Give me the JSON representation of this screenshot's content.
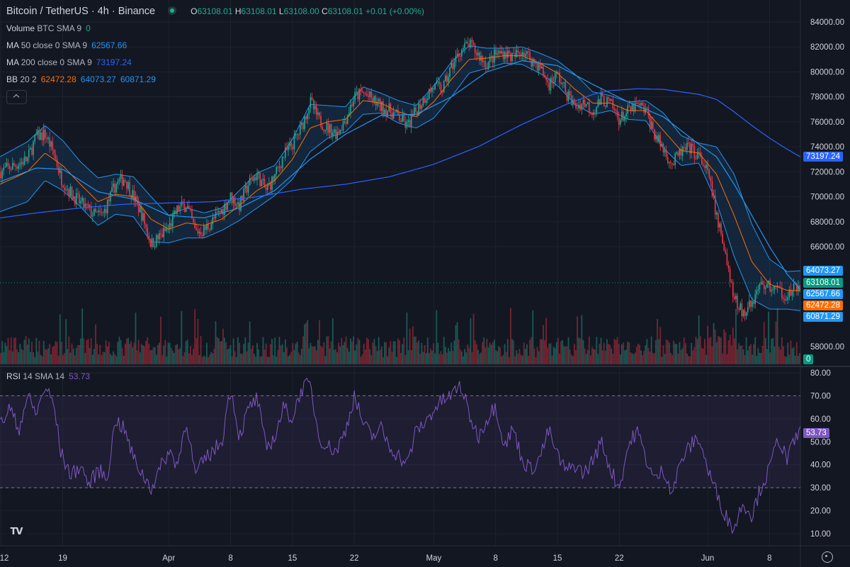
{
  "header": {
    "symbol": "Bitcoin / TetherUS · 4h · Binance",
    "open_k": "O",
    "open_v": "63108.01",
    "high_k": "H",
    "high_v": "63108.01",
    "low_k": "L",
    "low_v": "63108.00",
    "close_k": "C",
    "close_v": "63108.01",
    "change": "+0.01 (+0.00%)"
  },
  "legends": {
    "volume": {
      "name": "Volume",
      "params": "BTC SMA 9",
      "value": "0"
    },
    "ma50": {
      "name": "MA",
      "params": "50 close 0 SMA 9",
      "value": "62567.66"
    },
    "ma200": {
      "name": "MA",
      "params": "200 close 0 SMA 9",
      "value": "73197.24"
    },
    "bb": {
      "name": "BB",
      "params": "20 2",
      "basis": "62472.28",
      "upper": "64073.27",
      "lower": "60871.29"
    },
    "rsi": {
      "name": "RSI",
      "params": "14 SMA 14",
      "value": "53.73"
    }
  },
  "colors": {
    "background": "#131722",
    "up": "#22ab94",
    "down": "#f23645",
    "bb_band": "#2962ff",
    "bb_basis": "#ff6d00",
    "ma50": "#2196f3",
    "ma200": "#2962ff",
    "rsi": "#7e57c2"
  },
  "price_tags": [
    {
      "label": "73197.24",
      "value": 73197.24,
      "color": "#2962ff"
    },
    {
      "label": "64073.27",
      "value": 64073.27,
      "color": "#2196f3"
    },
    {
      "label": "63108.01",
      "value": 63108.01,
      "color": "#089981"
    },
    {
      "label": "62567.66",
      "value": 62567.66,
      "color": "#2196f3"
    },
    {
      "label": "62472.28",
      "value": 62472.28,
      "color": "#ff6d00"
    },
    {
      "label": "60871.29",
      "value": 60871.29,
      "color": "#2196f3"
    }
  ],
  "volume_tag": {
    "label": "0",
    "color": "#089981"
  },
  "rsi_tag": {
    "label": "53.73",
    "color": "#7e57c2"
  },
  "chart_data": {
    "type": "line",
    "title": "Bitcoin / TetherUS · 4h · Binance",
    "x_ticks": [
      "12",
      "19",
      "Apr",
      "8",
      "15",
      "22",
      "May",
      "8",
      "15",
      "22",
      "Jun",
      "8"
    ],
    "x_tick_days": [
      -19,
      -12,
      0,
      7,
      14,
      21,
      30,
      37,
      44,
      51,
      61,
      68
    ],
    "x_range_days": [
      -19.1,
      71.5
    ],
    "price_ticks": [
      "84000.00",
      "82000.00",
      "80000.00",
      "78000.00",
      "76000.00",
      "74000.00",
      "72000.00",
      "70000.00",
      "68000.00",
      "66000.00",
      "58000.00"
    ],
    "price_ylim": [
      58000,
      84000
    ],
    "rsi_ticks": [
      "80.00",
      "70.00",
      "60.00",
      "50.00",
      "40.00",
      "30.00",
      "20.00",
      "10.00"
    ],
    "rsi_ylim": [
      10,
      80
    ],
    "rsi_bands": [
      30,
      70
    ],
    "price_key": [
      [
        -19.1,
        72000
      ],
      [
        -17.5,
        72500
      ],
      [
        -16,
        73000
      ],
      [
        -15,
        74800
      ],
      [
        -14,
        75000
      ],
      [
        -13,
        73500
      ],
      [
        -12.2,
        71500
      ],
      [
        -11,
        70200
      ],
      [
        -10,
        69500
      ],
      [
        -8.5,
        68600
      ],
      [
        -7.5,
        68500
      ],
      [
        -6,
        71000
      ],
      [
        -5,
        71500
      ],
      [
        -4,
        70000
      ],
      [
        -3,
        68500
      ],
      [
        -2,
        66200
      ],
      [
        -1,
        66800
      ],
      [
        0,
        67500
      ],
      [
        1,
        69000
      ],
      [
        2,
        69400
      ],
      [
        3,
        67200
      ],
      [
        4,
        67300
      ],
      [
        5,
        68100
      ],
      [
        6,
        68900
      ],
      [
        7,
        70000
      ],
      [
        8,
        69300
      ],
      [
        9,
        71000
      ],
      [
        10,
        71800
      ],
      [
        11,
        70500
      ],
      [
        12,
        71600
      ],
      [
        13,
        73300
      ],
      [
        14,
        74200
      ],
      [
        15,
        75500
      ],
      [
        16,
        77600
      ],
      [
        17,
        76100
      ],
      [
        18,
        75500
      ],
      [
        19,
        75100
      ],
      [
        20,
        76200
      ],
      [
        21,
        78000
      ],
      [
        22,
        78300
      ],
      [
        23,
        77800
      ],
      [
        24,
        77200
      ],
      [
        25,
        76900
      ],
      [
        26,
        76400
      ],
      [
        27,
        75600
      ],
      [
        28,
        76900
      ],
      [
        29,
        78000
      ],
      [
        30,
        78800
      ],
      [
        31,
        78600
      ],
      [
        32,
        80400
      ],
      [
        33,
        81700
      ],
      [
        34,
        82200
      ],
      [
        35,
        81400
      ],
      [
        36,
        80600
      ],
      [
        37,
        81400
      ],
      [
        38,
        81600
      ],
      [
        39,
        81100
      ],
      [
        40,
        81800
      ],
      [
        41,
        81000
      ],
      [
        42,
        80400
      ],
      [
        43,
        79000
      ],
      [
        44,
        79800
      ],
      [
        45,
        78300
      ],
      [
        46,
        77200
      ],
      [
        47,
        77600
      ],
      [
        48,
        76900
      ],
      [
        49,
        77800
      ],
      [
        50,
        77400
      ],
      [
        51,
        76200
      ],
      [
        52,
        76800
      ],
      [
        53,
        77300
      ],
      [
        54,
        76900
      ],
      [
        55,
        75000
      ],
      [
        56,
        73800
      ],
      [
        57,
        72600
      ],
      [
        58,
        73600
      ],
      [
        59,
        73900
      ],
      [
        60,
        73200
      ],
      [
        61,
        72000
      ],
      [
        62,
        68500
      ],
      [
        63,
        65500
      ],
      [
        64,
        62000
      ],
      [
        65,
        60500
      ],
      [
        66,
        61500
      ],
      [
        67,
        63000
      ],
      [
        68,
        62800
      ],
      [
        69,
        62500
      ],
      [
        70,
        62100
      ],
      [
        71,
        62600
      ],
      [
        71.5,
        63108
      ]
    ],
    "ma200_key": [
      [
        -19.1,
        68300
      ],
      [
        -15,
        68700
      ],
      [
        -10,
        69100
      ],
      [
        -5,
        69400
      ],
      [
        0,
        69500
      ],
      [
        5,
        69600
      ],
      [
        10,
        70000
      ],
      [
        15,
        70600
      ],
      [
        20,
        71000
      ],
      [
        25,
        71600
      ],
      [
        30,
        72600
      ],
      [
        35,
        74000
      ],
      [
        40,
        75800
      ],
      [
        45,
        77400
      ],
      [
        48,
        78200
      ],
      [
        50,
        78500
      ],
      [
        53,
        78650
      ],
      [
        56,
        78600
      ],
      [
        58,
        78400
      ],
      [
        60,
        78200
      ],
      [
        62,
        77800
      ],
      [
        64,
        76800
      ],
      [
        66,
        75700
      ],
      [
        68,
        74700
      ],
      [
        70,
        73800
      ],
      [
        71.5,
        73200
      ]
    ],
    "bb_key": [
      [
        -19.1,
        71000,
        2200
      ],
      [
        -16,
        72000,
        2400
      ],
      [
        -14,
        73500,
        2200
      ],
      [
        -12,
        72500,
        2000
      ],
      [
        -10,
        71000,
        1800
      ],
      [
        -8,
        69600,
        1900
      ],
      [
        -6,
        70200,
        1600
      ],
      [
        -4,
        70000,
        1600
      ],
      [
        -2,
        68200,
        1800
      ],
      [
        0,
        67400,
        1100
      ],
      [
        2,
        67900,
        1200
      ],
      [
        4,
        67700,
        1000
      ],
      [
        6,
        68200,
        900
      ],
      [
        8,
        69300,
        1200
      ],
      [
        10,
        70500,
        1400
      ],
      [
        12,
        71300,
        1200
      ],
      [
        14,
        73000,
        1600
      ],
      [
        16,
        75500,
        1900
      ],
      [
        18,
        76000,
        1300
      ],
      [
        20,
        76200,
        1000
      ],
      [
        22,
        77700,
        1100
      ],
      [
        24,
        77500,
        800
      ],
      [
        26,
        76800,
        900
      ],
      [
        28,
        76400,
        900
      ],
      [
        30,
        77600,
        1300
      ],
      [
        32,
        79400,
        1400
      ],
      [
        34,
        81000,
        1100
      ],
      [
        36,
        81100,
        800
      ],
      [
        38,
        81300,
        600
      ],
      [
        40,
        81300,
        700
      ],
      [
        42,
        80700,
        800
      ],
      [
        44,
        79900,
        1000
      ],
      [
        46,
        78600,
        1200
      ],
      [
        48,
        77500,
        900
      ],
      [
        50,
        77500,
        600
      ],
      [
        52,
        76900,
        700
      ],
      [
        54,
        76900,
        800
      ],
      [
        56,
        75300,
        1400
      ],
      [
        58,
        73700,
        1200
      ],
      [
        60,
        73500,
        800
      ],
      [
        62,
        71800,
        2200
      ],
      [
        64,
        68500,
        3300
      ],
      [
        66,
        64800,
        3000
      ],
      [
        68,
        63000,
        2000
      ],
      [
        70,
        62500,
        1500
      ],
      [
        71.5,
        62472,
        1600
      ]
    ],
    "ma50_key": [
      [
        -19.1,
        71200
      ],
      [
        -15,
        72300
      ],
      [
        -12,
        72200
      ],
      [
        -8,
        70400
      ],
      [
        -4,
        69800
      ],
      [
        0,
        68500
      ],
      [
        4,
        68300
      ],
      [
        8,
        69100
      ],
      [
        12,
        70500
      ],
      [
        16,
        73000
      ],
      [
        20,
        75000
      ],
      [
        24,
        76500
      ],
      [
        28,
        76600
      ],
      [
        32,
        78000
      ],
      [
        36,
        80000
      ],
      [
        40,
        80900
      ],
      [
        44,
        80500
      ],
      [
        48,
        79000
      ],
      [
        52,
        77600
      ],
      [
        56,
        76400
      ],
      [
        60,
        74200
      ],
      [
        62,
        73200
      ],
      [
        64,
        71000
      ],
      [
        66,
        68500
      ],
      [
        68,
        66000
      ],
      [
        70,
        63800
      ],
      [
        71.5,
        62568
      ]
    ],
    "rsi_key": [
      [
        -19.1,
        57
      ],
      [
        -18,
        65
      ],
      [
        -17,
        55
      ],
      [
        -16,
        70
      ],
      [
        -15,
        62
      ],
      [
        -14,
        74
      ],
      [
        -13,
        66
      ],
      [
        -12.2,
        45
      ],
      [
        -11,
        35
      ],
      [
        -10,
        40
      ],
      [
        -9,
        31
      ],
      [
        -8,
        38
      ],
      [
        -7,
        34
      ],
      [
        -6,
        60
      ],
      [
        -5,
        55
      ],
      [
        -4,
        43
      ],
      [
        -3,
        36
      ],
      [
        -2,
        30
      ],
      [
        -1,
        38
      ],
      [
        0,
        46
      ],
      [
        1,
        40
      ],
      [
        2,
        60
      ],
      [
        3,
        35
      ],
      [
        4,
        42
      ],
      [
        5,
        46
      ],
      [
        6,
        50
      ],
      [
        7,
        74
      ],
      [
        8,
        52
      ],
      [
        9,
        64
      ],
      [
        10,
        69
      ],
      [
        11,
        47
      ],
      [
        12,
        52
      ],
      [
        13,
        65
      ],
      [
        14,
        60
      ],
      [
        15,
        73
      ],
      [
        16,
        75
      ],
      [
        17,
        52
      ],
      [
        18,
        48
      ],
      [
        19,
        46
      ],
      [
        20,
        55
      ],
      [
        21,
        70
      ],
      [
        22,
        58
      ],
      [
        23,
        52
      ],
      [
        24,
        56
      ],
      [
        25,
        48
      ],
      [
        26,
        44
      ],
      [
        27,
        40
      ],
      [
        28,
        55
      ],
      [
        29,
        58
      ],
      [
        30,
        64
      ],
      [
        31,
        68
      ],
      [
        32,
        70
      ],
      [
        33,
        75
      ],
      [
        34,
        62
      ],
      [
        35,
        52
      ],
      [
        36,
        60
      ],
      [
        37,
        66
      ],
      [
        38,
        48
      ],
      [
        39,
        56
      ],
      [
        40,
        42
      ],
      [
        41,
        38
      ],
      [
        42,
        43
      ],
      [
        43,
        55
      ],
      [
        44,
        44
      ],
      [
        45,
        37
      ],
      [
        46,
        40
      ],
      [
        47,
        36
      ],
      [
        48,
        42
      ],
      [
        49,
        50
      ],
      [
        50,
        38
      ],
      [
        51,
        30
      ],
      [
        52,
        48
      ],
      [
        53,
        55
      ],
      [
        54,
        43
      ],
      [
        55,
        33
      ],
      [
        56,
        38
      ],
      [
        57,
        28
      ],
      [
        58,
        42
      ],
      [
        59,
        48
      ],
      [
        60,
        52
      ],
      [
        61,
        38
      ],
      [
        62,
        28
      ],
      [
        63,
        18
      ],
      [
        64,
        12
      ],
      [
        65,
        24
      ],
      [
        66,
        18
      ],
      [
        67,
        30
      ],
      [
        68,
        38
      ],
      [
        69,
        52
      ],
      [
        70,
        42
      ],
      [
        71,
        52
      ],
      [
        71.5,
        54
      ]
    ]
  }
}
